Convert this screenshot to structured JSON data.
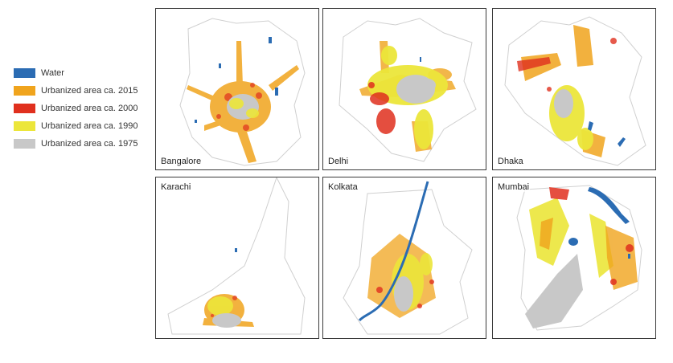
{
  "legend": {
    "items": [
      {
        "label": "Water",
        "color": "#2b6cb3"
      },
      {
        "label": "Urbanized area ca. 2015",
        "color": "#f0a41d"
      },
      {
        "label": "Urbanized area ca. 2000",
        "color": "#e0301e"
      },
      {
        "label": "Urbanized area ca. 1990",
        "color": "#ece63a"
      },
      {
        "label": "Urbanized area ca. 1975",
        "color": "#c8c8c8"
      }
    ]
  },
  "panels": [
    {
      "id": "bangalore",
      "label": "Bangalore"
    },
    {
      "id": "delhi",
      "label": "Delhi"
    },
    {
      "id": "dhaka",
      "label": "Dhaka"
    },
    {
      "id": "karachi",
      "label": "Karachi"
    },
    {
      "id": "kolkata",
      "label": "Kolkata"
    },
    {
      "id": "mumbai",
      "label": "Mumbai"
    }
  ]
}
